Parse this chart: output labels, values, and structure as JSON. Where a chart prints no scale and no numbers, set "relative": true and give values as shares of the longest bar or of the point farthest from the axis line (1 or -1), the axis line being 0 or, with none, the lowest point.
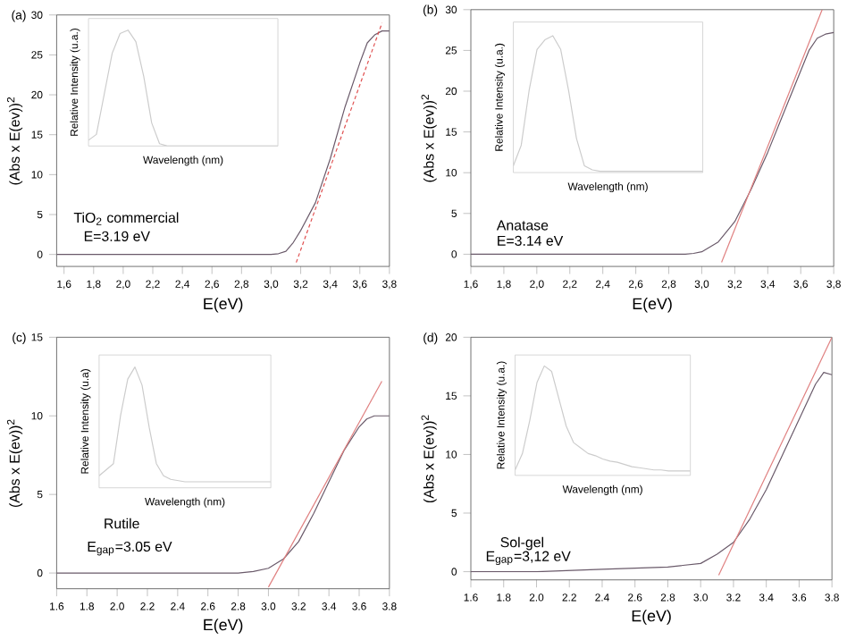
{
  "chart_data": [
    {
      "type": "line",
      "title": "(a)",
      "xlabel": "E(eV)",
      "ylabel": "(Abs x E(ev))$^{2}$",
      "xlim": [
        1.55,
        3.8
      ],
      "ylim": [
        -1.5,
        30
      ],
      "xticks": [
        {
          "value": 1.6,
          "label": "1,6"
        },
        {
          "value": 1.8,
          "label": "1,8"
        },
        {
          "value": 2.0,
          "label": "2,0"
        },
        {
          "value": 2.2,
          "label": "2,2"
        },
        {
          "value": 2.4,
          "label": "2,4"
        },
        {
          "value": 2.6,
          "label": "2,6"
        },
        {
          "value": 2.8,
          "label": "2,8"
        },
        {
          "value": 3.0,
          "label": "3,0"
        },
        {
          "value": 3.2,
          "label": "3,2"
        },
        {
          "value": 3.4,
          "label": "3,4"
        },
        {
          "value": 3.6,
          "label": "3,6"
        },
        {
          "value": 3.8,
          "label": "3,8"
        }
      ],
      "yticks": [
        0,
        5,
        10,
        15,
        20,
        25,
        30
      ],
      "series": [
        {
          "color": "#6a5a6a",
          "line_style": "solid",
          "x": [
            1.55,
            2.0,
            2.5,
            3.0,
            3.05,
            3.1,
            3.15,
            3.2,
            3.3,
            3.4,
            3.5,
            3.6,
            3.65,
            3.7,
            3.75,
            3.8
          ],
          "values": [
            0,
            0,
            0,
            0,
            0.1,
            0.4,
            1.5,
            3,
            6.5,
            12,
            18.5,
            24,
            26.5,
            27.5,
            28,
            28
          ]
        },
        {
          "color": "#e05050",
          "line_style": "dashed",
          "x": [
            3.17,
            3.75
          ],
          "values": [
            -1,
            29
          ]
        }
      ],
      "annotations": [
        "TiO$_{2}$ commercial",
        "E=3.19 eV"
      ]
    },
    {
      "type": "line",
      "relative": true,
      "xlabel": "Wavelength (nm)",
      "ylabel": "Relative Intensity (u.a.)",
      "categories": [
        null,
        null,
        null,
        null,
        null,
        null,
        null,
        null,
        null,
        null,
        null,
        null,
        null,
        null,
        null,
        null,
        null,
        null,
        null,
        null,
        null,
        null,
        null,
        null,
        null
      ],
      "series": [
        {
          "color": "#cccccc",
          "values": [
            0.05,
            0.1,
            0.45,
            0.8,
            0.97,
            1,
            0.9,
            0.6,
            0.2,
            0.02,
            0,
            0,
            0,
            0,
            0,
            0,
            0,
            0,
            0,
            0,
            0,
            0,
            0,
            0,
            0
          ]
        }
      ]
    },
    {
      "type": "line",
      "title": "(b)",
      "xlabel": "E(eV)",
      "ylabel": "(Abs x E(ev))$^{2}$",
      "xlim": [
        1.6,
        3.8
      ],
      "ylim": [
        -1.5,
        30
      ],
      "xticks": [
        {
          "value": 1.6,
          "label": "1,6"
        },
        {
          "value": 1.8,
          "label": "1,8"
        },
        {
          "value": 2.0,
          "label": "2,0"
        },
        {
          "value": 2.2,
          "label": "2,2"
        },
        {
          "value": 2.4,
          "label": "2,4"
        },
        {
          "value": 2.6,
          "label": "2,6"
        },
        {
          "value": 2.8,
          "label": "2,8"
        },
        {
          "value": 3.0,
          "label": "3,0"
        },
        {
          "value": 3.2,
          "label": "3,2"
        },
        {
          "value": 3.4,
          "label": "3,4"
        },
        {
          "value": 3.6,
          "label": "3,6"
        },
        {
          "value": 3.8,
          "label": "3,8"
        }
      ],
      "yticks": [
        0,
        5,
        10,
        15,
        20,
        25,
        30
      ],
      "series": [
        {
          "color": "#6a5a6a",
          "line_style": "solid",
          "x": [
            1.6,
            2.0,
            2.5,
            2.9,
            2.95,
            3.0,
            3.1,
            3.2,
            3.3,
            3.4,
            3.5,
            3.6,
            3.65,
            3.7,
            3.75,
            3.8
          ],
          "values": [
            0,
            0,
            0,
            0,
            0.1,
            0.3,
            1.5,
            4,
            8,
            12.5,
            17.5,
            22.5,
            25,
            26.5,
            27,
            27.2
          ]
        },
        {
          "color": "#e08080",
          "line_style": "solid",
          "x": [
            3.12,
            3.73
          ],
          "values": [
            -1,
            30
          ]
        }
      ],
      "annotations": [
        "Anatase",
        "E=3.14 eV"
      ]
    },
    {
      "type": "line",
      "relative": true,
      "xlabel": "Wavelength (nm)",
      "ylabel": "Relative Intensity (u.a.)",
      "categories": [
        null,
        null,
        null,
        null,
        null,
        null,
        null,
        null,
        null,
        null,
        null,
        null,
        null,
        null,
        null,
        null,
        null,
        null,
        null,
        null,
        null,
        null,
        null,
        null,
        null
      ],
      "series": [
        {
          "color": "#cccccc",
          "values": [
            0.05,
            0.2,
            0.6,
            0.9,
            0.97,
            1,
            0.9,
            0.6,
            0.25,
            0.05,
            0.02,
            0.01,
            0.01,
            0.01,
            0.01,
            0.01,
            0.01,
            0.01,
            0.01,
            0.01,
            0.01,
            0.01,
            0.01,
            0.01,
            0.01
          ]
        }
      ]
    },
    {
      "type": "line",
      "title": "(c)",
      "xlabel": "E(eV)",
      "ylabel": "(Abs x E(ev))$^{2}$",
      "xlim": [
        1.6,
        3.8
      ],
      "ylim": [
        -1,
        15
      ],
      "xticks": [
        1.6,
        1.8,
        {
          "value": 2,
          "label": "2.0"
        },
        2.2,
        2.4,
        2.6,
        2.8,
        {
          "value": 3,
          "label": "3.0"
        },
        3.2,
        3.4,
        3.6,
        3.8
      ],
      "yticks": [
        0,
        5,
        10,
        15
      ],
      "series": [
        {
          "color": "#6a5a6a",
          "line_style": "solid",
          "x": [
            1.6,
            2.0,
            2.5,
            2.8,
            2.9,
            3.0,
            3.1,
            3.2,
            3.3,
            3.4,
            3.5,
            3.6,
            3.65,
            3.7,
            3.75,
            3.8
          ],
          "values": [
            0,
            0,
            0,
            0,
            0.1,
            0.3,
            0.9,
            2,
            3.8,
            5.8,
            7.8,
            9.3,
            9.8,
            10,
            10,
            10
          ]
        },
        {
          "color": "#e08080",
          "line_style": "solid",
          "x": [
            3.0,
            3.75
          ],
          "values": [
            -0.9,
            12.2
          ]
        }
      ],
      "annotations": [
        "Rutile",
        "E$_{gap}$=3.05 eV"
      ]
    },
    {
      "type": "line",
      "relative": true,
      "xlabel": "Wavelength (nm)",
      "ylabel": "Relative Intensity (u.a)",
      "categories": [
        null,
        null,
        null,
        null,
        null,
        null,
        null,
        null,
        null,
        null,
        null,
        null,
        null,
        null,
        null,
        null,
        null,
        null,
        null,
        null,
        null,
        null,
        null,
        null,
        null
      ],
      "series": [
        {
          "color": "#cccccc",
          "values": [
            0.1,
            0.15,
            0.2,
            0.6,
            0.9,
            1,
            0.85,
            0.5,
            0.2,
            0.1,
            0.07,
            0.06,
            0.05,
            0.05,
            0.05,
            0.05,
            0.05,
            0.05,
            0.05,
            0.05,
            0.05,
            0.05,
            0.05,
            0.05,
            0.05
          ]
        }
      ]
    },
    {
      "type": "line",
      "title": "(d)",
      "xlabel": "E(eV)",
      "ylabel": "(Abs x E(ev))$^{2}$",
      "xlim": [
        1.6,
        3.8
      ],
      "ylim": [
        -0.7,
        20
      ],
      "xticks": [
        1.6,
        1.8,
        {
          "value": 2,
          "label": "2.0"
        },
        2.2,
        2.4,
        2.6,
        2.8,
        {
          "value": 3,
          "label": "3.0"
        },
        3.2,
        3.4,
        3.6,
        3.8
      ],
      "yticks": [
        0,
        5,
        10,
        15,
        20
      ],
      "series": [
        {
          "color": "#6a5a6a",
          "line_style": "solid",
          "x": [
            1.6,
            2.0,
            2.4,
            2.8,
            3.0,
            3.1,
            3.2,
            3.3,
            3.4,
            3.5,
            3.6,
            3.7,
            3.75,
            3.8
          ],
          "values": [
            0,
            0,
            0.2,
            0.4,
            0.7,
            1.5,
            2.5,
            4.5,
            7,
            10,
            13,
            16,
            17,
            16.8
          ]
        },
        {
          "color": "#e08080",
          "line_style": "solid",
          "x": [
            3.11,
            3.8
          ],
          "values": [
            -0.3,
            20
          ]
        }
      ],
      "annotations": [
        "Sol-gel",
        "E$_{gap}$=3,12 eV"
      ]
    },
    {
      "type": "line",
      "relative": true,
      "xlabel": "Wavelength (nm)",
      "ylabel": "Relative Intensity (u.a.)",
      "categories": [
        null,
        null,
        null,
        null,
        null,
        null,
        null,
        null,
        null,
        null,
        null,
        null,
        null,
        null,
        null,
        null,
        null,
        null,
        null,
        null,
        null,
        null,
        null,
        null,
        null
      ],
      "series": [
        {
          "color": "#cccccc",
          "values": [
            0.05,
            0.2,
            0.5,
            0.85,
            1,
            0.95,
            0.7,
            0.45,
            0.3,
            0.25,
            0.2,
            0.18,
            0.15,
            0.13,
            0.12,
            0.1,
            0.08,
            0.07,
            0.06,
            0.05,
            0.05,
            0.04,
            0.04,
            0.04,
            0.04
          ]
        }
      ]
    }
  ]
}
